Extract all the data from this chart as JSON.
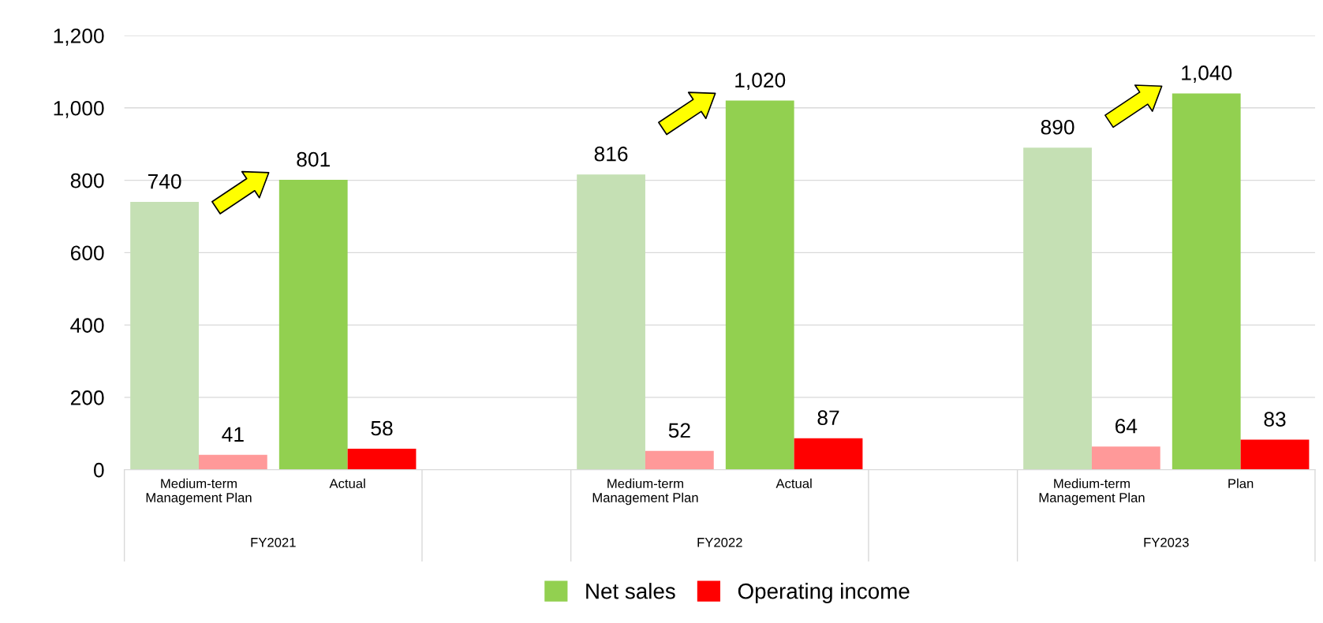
{
  "chart_data": {
    "type": "bar",
    "categories": [
      "Medium-term\nManagement Plan",
      "Actual",
      null,
      "Medium-term\nManagement Plan",
      "Actual",
      null,
      "Medium-term\nManagement Plan",
      "Plan"
    ],
    "annotations": [
      "FY2021",
      "FY2022",
      "FY2023"
    ],
    "series": [
      {
        "name": "Net sales",
        "color": "#92d050",
        "colors": [
          "#c5e0b4",
          "#92d050",
          null,
          "#c5e0b4",
          "#92d050",
          null,
          "#c5e0b4",
          "#92d050"
        ],
        "values": [
          740,
          801,
          null,
          816,
          1020,
          null,
          890,
          1040
        ],
        "value_labels": [
          "740",
          "801",
          null,
          "816",
          "1,020",
          null,
          "890",
          "1,040"
        ]
      },
      {
        "name": "Operating income",
        "color": "#ff0000",
        "colors": [
          "#ff9999",
          "#ff0000",
          null,
          "#ff9999",
          "#ff0000",
          null,
          "#ff9999",
          "#ff0000"
        ],
        "values": [
          41,
          58,
          null,
          52,
          87,
          null,
          64,
          83
        ],
        "value_labels": [
          "41",
          "58",
          null,
          "52",
          "87",
          null,
          "64",
          "83"
        ]
      }
    ],
    "ylim": [
      0,
      1200
    ],
    "yticks": [
      0,
      200,
      400,
      600,
      800,
      {
        "value": 1000,
        "label": "1,000"
      },
      {
        "value": 1200,
        "label": "1,200"
      }
    ],
    "grid": "y",
    "legend": "bottom"
  }
}
